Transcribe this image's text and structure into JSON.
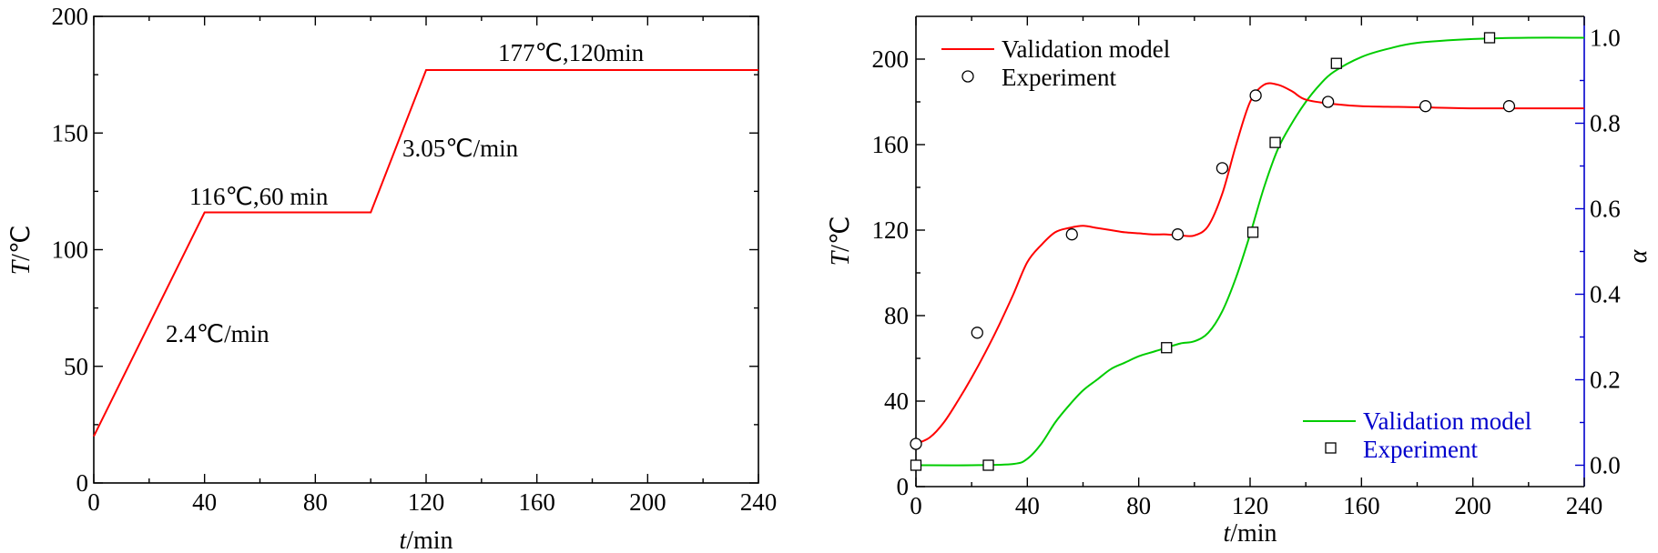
{
  "chart_data": [
    {
      "type": "line",
      "xlabel_italic": "t",
      "xlabel_rest": "/min",
      "ylabel_italic": "T",
      "ylabel_rest": "/℃",
      "xlim": [
        0,
        240
      ],
      "ylim": [
        0,
        200
      ],
      "xticks": [
        0,
        40,
        80,
        120,
        160,
        200,
        240
      ],
      "yticks": [
        0,
        50,
        100,
        150,
        200
      ],
      "xtick_labels": [
        "0",
        "40",
        "80",
        "120",
        "160",
        "200",
        "240"
      ],
      "ytick_labels": [
        "0",
        "50",
        "100",
        "150",
        "200"
      ],
      "series": [
        {
          "color": "#ff0000",
          "x": [
            0,
            40,
            100,
            120,
            240
          ],
          "y": [
            20,
            116,
            116,
            177,
            177
          ]
        }
      ],
      "annotations": {
        "ramp1": "2.4℃/min",
        "hold1": "116℃,60 min",
        "ramp2": "3.05℃/min",
        "hold2": "177℃,120min"
      }
    },
    {
      "type": "line",
      "xlabel_italic": "t",
      "xlabel_rest": "/min",
      "ylabel_italic": "T",
      "ylabel_rest": "/℃",
      "y2label": "α",
      "xlim": [
        0,
        240
      ],
      "ylim": [
        0,
        220
      ],
      "y2lim": [
        -0.05,
        1.05
      ],
      "xticks": [
        0,
        40,
        80,
        120,
        160,
        200,
        240
      ],
      "yticks": [
        0,
        40,
        80,
        120,
        160,
        200
      ],
      "y2ticks": [
        0.0,
        0.2,
        0.4,
        0.6,
        0.8,
        1.0
      ],
      "xtick_labels": [
        "0",
        "40",
        "80",
        "120",
        "160",
        "200",
        "240"
      ],
      "ytick_labels": [
        "0",
        "40",
        "80",
        "120",
        "160",
        "200"
      ],
      "y2tick_labels": [
        "0.0",
        "0.2",
        "0.4",
        "0.6",
        "0.8",
        "1.0"
      ],
      "legend_top": [
        "Validation model",
        "Experiment"
      ],
      "legend_bottom": [
        "Validation model",
        "Experiment"
      ],
      "temperature_model": {
        "color": "#ff0000",
        "x": [
          0,
          5,
          10,
          15,
          20,
          25,
          30,
          35,
          40,
          45,
          50,
          55,
          60,
          65,
          70,
          75,
          80,
          85,
          90,
          95,
          100,
          105,
          110,
          115,
          120,
          125,
          130,
          135,
          140,
          150,
          160,
          180,
          200,
          220,
          240
        ],
        "y": [
          20,
          23,
          30,
          40,
          51,
          63,
          76,
          90,
          105,
          113,
          119,
          121,
          122,
          121,
          120,
          119,
          118.5,
          118,
          118,
          117.5,
          117.5,
          122,
          137,
          160,
          180,
          188,
          188,
          185,
          181,
          179,
          178,
          177.5,
          177,
          177,
          177
        ]
      },
      "temperature_experiment": {
        "x": [
          0,
          22,
          56,
          94,
          110,
          122,
          148,
          183,
          213
        ],
        "y": [
          20,
          72,
          118,
          118,
          149,
          183,
          180,
          178,
          178
        ]
      },
      "alpha_model": {
        "color": "#00cc00",
        "x": [
          0,
          20,
          35,
          40,
          45,
          50,
          55,
          60,
          65,
          70,
          75,
          80,
          85,
          90,
          95,
          100,
          105,
          110,
          115,
          120,
          125,
          130,
          135,
          140,
          145,
          150,
          160,
          170,
          180,
          200,
          220,
          240
        ],
        "y": [
          0.0,
          0.0,
          0.003,
          0.015,
          0.05,
          0.1,
          0.14,
          0.175,
          0.2,
          0.225,
          0.24,
          0.255,
          0.265,
          0.275,
          0.285,
          0.29,
          0.31,
          0.36,
          0.44,
          0.54,
          0.65,
          0.74,
          0.8,
          0.85,
          0.89,
          0.92,
          0.955,
          0.975,
          0.988,
          0.997,
          1.0,
          1.0
        ]
      },
      "alpha_experiment": {
        "x": [
          0,
          26,
          90,
          121,
          129,
          151,
          206
        ],
        "y": [
          0.0,
          0.0,
          0.275,
          0.545,
          0.755,
          0.94,
          1.0
        ]
      }
    }
  ]
}
